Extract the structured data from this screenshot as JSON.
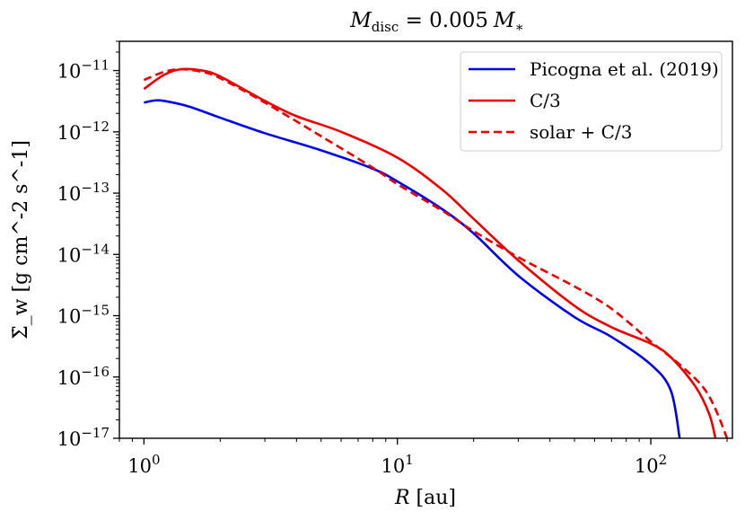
{
  "chart_data": {
    "type": "line",
    "title": "M_disc = 0.005 M_*",
    "title_parts": {
      "m": "M",
      "sub": "disc",
      "eq": " = 0.005",
      "m2": "M",
      "star": "∗"
    },
    "xlabel": "R [au]",
    "xlabel_parts": {
      "var": "R",
      "unit": " [au]"
    },
    "ylabel": "Σ̇_w [g cm^-2 s^-1]",
    "xscale": "log",
    "yscale": "log",
    "xlim": [
      0.8,
      210
    ],
    "ylim": [
      1e-17,
      3e-11
    ],
    "x_ticks": [
      {
        "base": "10",
        "exp": "0"
      },
      {
        "base": "10",
        "exp": "1"
      },
      {
        "base": "10",
        "exp": "2"
      }
    ],
    "y_ticks": [
      {
        "base": "10",
        "exp": "−11"
      },
      {
        "base": "10",
        "exp": "−12"
      },
      {
        "base": "10",
        "exp": "−13"
      },
      {
        "base": "10",
        "exp": "−14"
      },
      {
        "base": "10",
        "exp": "−15"
      },
      {
        "base": "10",
        "exp": "−16"
      },
      {
        "base": "10",
        "exp": "−17"
      }
    ],
    "legend_position": "top-right",
    "series": [
      {
        "name": "Picogna et al. (2019)",
        "color": "#0000ee",
        "style": "solid",
        "x": [
          1.0,
          1.1,
          1.2,
          1.5,
          2.0,
          3.0,
          5.0,
          8.0,
          10,
          15,
          20,
          30,
          50,
          70,
          100,
          120,
          130
        ],
        "y": [
          3e-12,
          3.25e-12,
          3.2e-12,
          2.6e-12,
          1.7e-12,
          9.5e-13,
          5e-13,
          2.5e-13,
          1.55e-13,
          5.5e-14,
          2.2e-14,
          4.5e-15,
          9.5e-16,
          4.5e-16,
          1.6e-16,
          6e-17,
          1e-17
        ]
      },
      {
        "name": "C/3",
        "color": "#ee0000",
        "style": "solid",
        "x": [
          1.0,
          1.2,
          1.4,
          1.7,
          2.0,
          3.0,
          4.0,
          6.0,
          10,
          15,
          20,
          30,
          50,
          70,
          100,
          120,
          150,
          170,
          180
        ],
        "y": [
          5e-12,
          8.5e-12,
          1.05e-11,
          1e-11,
          8e-12,
          3.2e-12,
          1.8e-12,
          1e-12,
          3.8e-13,
          1.15e-13,
          3.8e-14,
          8e-15,
          1.45e-15,
          6.5e-16,
          3.5e-16,
          2.1e-16,
          7e-17,
          2.5e-17,
          1e-17
        ]
      },
      {
        "name": "solar + C/3",
        "color": "#ee0000",
        "style": "dashed",
        "x": [
          1.0,
          1.2,
          1.4,
          1.7,
          2.0,
          3.0,
          5.0,
          8.0,
          10,
          15,
          20,
          30,
          50,
          70,
          100,
          130,
          160,
          180,
          200
        ],
        "y": [
          7e-12,
          9.5e-12,
          1.05e-11,
          9.5e-12,
          7.5e-12,
          3e-12,
          8.5e-13,
          2.6e-13,
          1.4e-13,
          5.2e-14,
          2.4e-14,
          9e-15,
          3e-15,
          1.3e-15,
          3.8e-16,
          1.6e-16,
          7e-17,
          3e-17,
          1e-17
        ]
      }
    ]
  }
}
